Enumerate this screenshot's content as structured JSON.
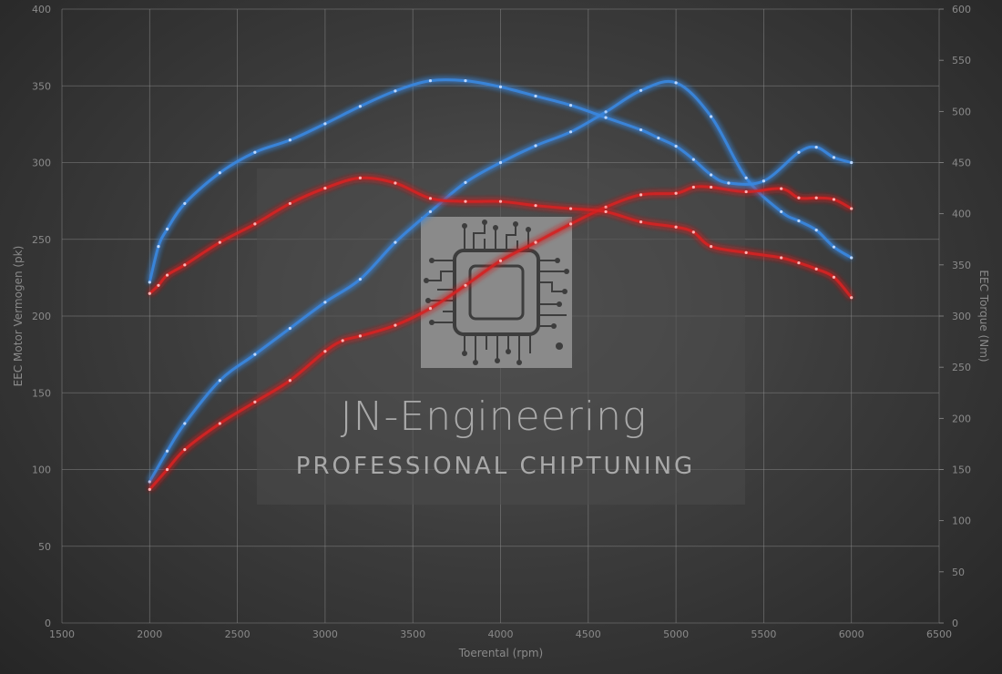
{
  "chart_data": {
    "type": "line",
    "xlabel": "Toerental (rpm)",
    "ylabel_left": "EEC Motor Vermogen (pk)",
    "ylabel_right": "EEC Torque (Nm)",
    "xlim": [
      1500,
      6500
    ],
    "ylim_left": [
      0,
      400
    ],
    "ylim_right": [
      0,
      600
    ],
    "x_ticks": [
      "1500",
      "2000",
      "2500",
      "3000",
      "3500",
      "4000",
      "4500",
      "5000",
      "5500",
      "6000",
      "6500"
    ],
    "y_left_ticks": [
      "0",
      "50",
      "100",
      "150",
      "200",
      "250",
      "300",
      "350",
      "400"
    ],
    "y_right_ticks": [
      "0",
      "50",
      "100",
      "150",
      "200",
      "250",
      "300",
      "350",
      "400",
      "450",
      "500",
      "550",
      "600"
    ],
    "grid": true,
    "series": [
      {
        "color": "#3a87e0",
        "axis": "left",
        "x": [
          2000,
          2100,
          2200,
          2400,
          2600,
          2800,
          3000,
          3200,
          3400,
          3600,
          3800,
          4000,
          4200,
          4400,
          4600,
          4800,
          5000,
          5200,
          5400,
          5600,
          5700,
          5800,
          5900,
          6000
        ],
        "values": [
          92,
          112,
          130,
          158,
          175,
          192,
          209,
          224,
          248,
          268,
          287,
          300,
          311,
          320,
          333,
          347,
          352,
          330,
          290,
          268,
          262,
          256,
          245,
          238
        ]
      },
      {
        "color": "#d42222",
        "axis": "left",
        "x": [
          2000,
          2100,
          2200,
          2400,
          2600,
          2800,
          3000,
          3100,
          3200,
          3400,
          3600,
          3800,
          4000,
          4200,
          4400,
          4600,
          4800,
          5000,
          5100,
          5200,
          5400,
          5600,
          5700,
          5800,
          5900,
          6000
        ],
        "values": [
          87,
          100,
          113,
          130,
          144,
          158,
          177,
          184,
          187,
          194,
          205,
          220,
          236,
          248,
          260,
          271,
          279,
          280,
          284,
          284,
          281,
          283,
          277,
          277,
          276,
          270
        ]
      },
      {
        "color": "#3a87e0",
        "axis": "right",
        "x": [
          2000,
          2050,
          2100,
          2200,
          2400,
          2600,
          2800,
          3000,
          3200,
          3400,
          3600,
          3800,
          4000,
          4200,
          4400,
          4600,
          4800,
          4900,
          5000,
          5100,
          5200,
          5300,
          5500,
          5700,
          5800,
          5900,
          6000
        ],
        "values": [
          333,
          368,
          385,
          410,
          440,
          460,
          472,
          488,
          505,
          520,
          530,
          530,
          524,
          515,
          506,
          494,
          482,
          474,
          466,
          453,
          438,
          430,
          432,
          460,
          465,
          455,
          450
        ]
      },
      {
        "color": "#d42222",
        "axis": "right",
        "x": [
          2000,
          2050,
          2100,
          2200,
          2400,
          2600,
          2800,
          3000,
          3200,
          3400,
          3600,
          3800,
          4000,
          4200,
          4400,
          4600,
          4800,
          5000,
          5100,
          5200,
          5400,
          5600,
          5700,
          5800,
          5900,
          6000
        ],
        "values": [
          322,
          330,
          340,
          350,
          372,
          390,
          410,
          425,
          435,
          430,
          415,
          412,
          412,
          408,
          405,
          402,
          392,
          387,
          382,
          368,
          362,
          357,
          352,
          346,
          338,
          318
        ]
      }
    ]
  },
  "watermark": {
    "title": "JN-Engineering",
    "subtitle": "PROFESSIONAL CHIPTUNING"
  }
}
